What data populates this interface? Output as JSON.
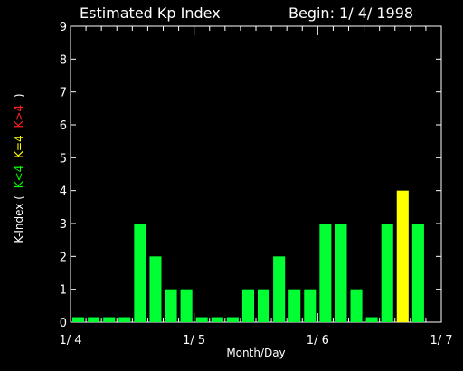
{
  "chart_data": {
    "type": "bar",
    "title": "Estimated Kp Index",
    "begin_label": "Begin: 1/ 4/ 1998",
    "xlabel": "Month/Day",
    "ylabel_prefix": "K-Index (",
    "ylabel_parts": [
      {
        "text": "K<4",
        "color": "#00ff00"
      },
      {
        "text": "K=4",
        "color": "#ffff00"
      },
      {
        "text": "K>4",
        "color": "#ff2020"
      }
    ],
    "ylabel_suffix": ")",
    "ylim": [
      0,
      9
    ],
    "yticks": [
      "0",
      "1",
      "2",
      "3",
      "4",
      "5",
      "6",
      "7",
      "8",
      "9"
    ],
    "xticks": [
      "1/ 4",
      "1/ 5",
      "1/ 6",
      "1/ 7"
    ],
    "bar_colors": {
      "below4": "#00ff33",
      "equal4": "#ffff00",
      "above4": "#ff0000"
    },
    "values": [
      0.15,
      0.15,
      0.15,
      0.15,
      3,
      2,
      1,
      1,
      0.15,
      0.15,
      0.15,
      1,
      1,
      2,
      1,
      1,
      3,
      3,
      1,
      0.15,
      3,
      4,
      3,
      0
    ]
  }
}
